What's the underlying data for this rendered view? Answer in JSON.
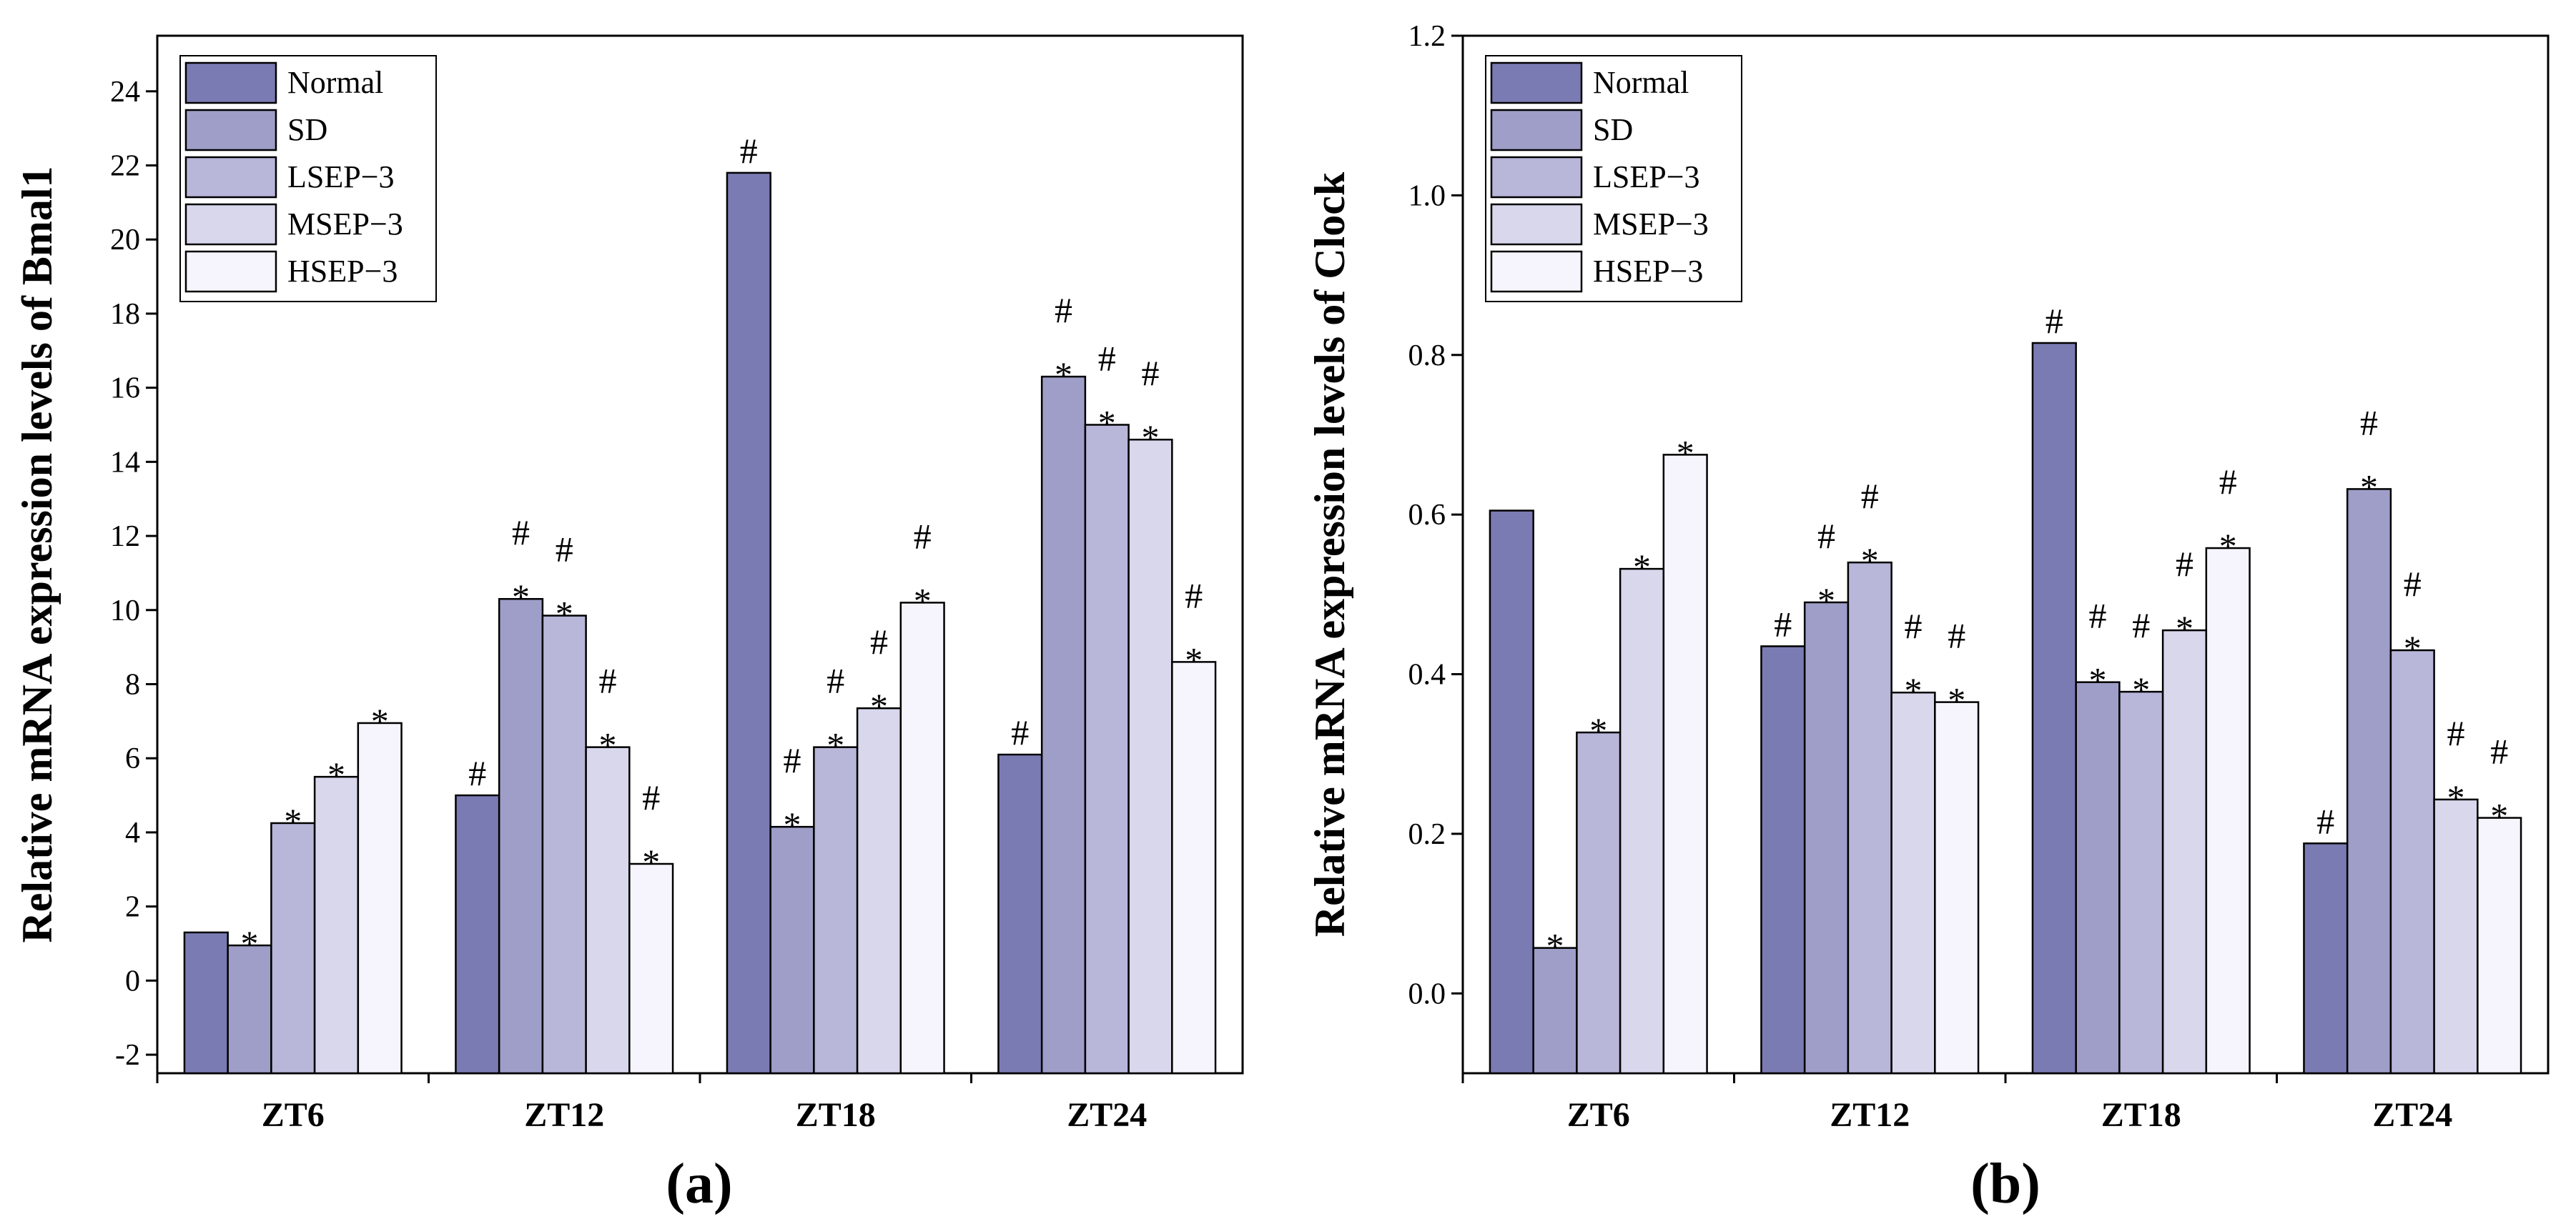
{
  "colors": [
    "#7b7bb3",
    "#9e9ec8",
    "#b8b6d9",
    "#d8d7ec",
    "#f6f5fd"
  ],
  "chart_data": [
    {
      "type": "bar",
      "panel_label": "(a)",
      "ylabel": "Relative mRNA expression levels of Bmal1",
      "xlabel": "",
      "ylim": [
        -2.5,
        25.5
      ],
      "yticks": [
        -2,
        0,
        2,
        4,
        6,
        8,
        10,
        12,
        14,
        16,
        18,
        20,
        22,
        24
      ],
      "yticks_text": [
        "-2",
        "0",
        "2",
        "4",
        "6",
        "8",
        "10",
        "12",
        "14",
        "16",
        "18",
        "20",
        "22",
        "24"
      ],
      "legend_position": "top-left",
      "categories": [
        "ZT6",
        "ZT12",
        "ZT18",
        "ZT24"
      ],
      "series": [
        {
          "name": "Normal",
          "values": [
            1.3,
            5.0,
            21.8,
            6.1
          ],
          "annotations": [
            "",
            "#",
            "#",
            "#"
          ]
        },
        {
          "name": "SD",
          "values": [
            0.95,
            10.3,
            4.15,
            16.3
          ],
          "annotations": [
            "*",
            "#*",
            "#*",
            "#*"
          ]
        },
        {
          "name": "LSEP−3",
          "values": [
            4.25,
            9.85,
            6.3,
            15.0
          ],
          "annotations": [
            "*",
            "#*",
            "#*",
            "#*"
          ]
        },
        {
          "name": "MSEP−3",
          "values": [
            5.5,
            6.3,
            7.35,
            14.6
          ],
          "annotations": [
            "*",
            "#*",
            "#*",
            "#*"
          ]
        },
        {
          "name": "HSEP−3",
          "values": [
            6.95,
            3.15,
            10.2,
            8.6
          ],
          "annotations": [
            "*",
            "#*",
            "#*",
            "#*"
          ]
        }
      ]
    },
    {
      "type": "bar",
      "panel_label": "(b)",
      "ylabel": "Relative mRNA expression levels of Clock",
      "xlabel": "",
      "ylim": [
        -0.1,
        1.2
      ],
      "yticks": [
        0.0,
        0.2,
        0.4,
        0.6,
        0.8,
        1.0,
        1.2
      ],
      "yticks_text": [
        "0.0",
        "0.2",
        "0.4",
        "0.6",
        "0.8",
        "1.0",
        "1.2"
      ],
      "legend_position": "top-left",
      "categories": [
        "ZT6",
        "ZT12",
        "ZT18",
        "ZT24"
      ],
      "series": [
        {
          "name": "Normal",
          "values": [
            0.605,
            0.435,
            0.815,
            0.188
          ],
          "annotations": [
            "",
            "#",
            "#",
            "#"
          ]
        },
        {
          "name": "SD",
          "values": [
            0.057,
            0.49,
            0.39,
            0.632
          ],
          "annotations": [
            "*",
            "#*",
            "#*",
            "#*"
          ]
        },
        {
          "name": "LSEP−3",
          "values": [
            0.327,
            0.54,
            0.378,
            0.43
          ],
          "annotations": [
            "*",
            "#*",
            "#*",
            "#*"
          ]
        },
        {
          "name": "MSEP−3",
          "values": [
            0.532,
            0.377,
            0.455,
            0.243
          ],
          "annotations": [
            "*",
            "#*",
            "#*",
            "#*"
          ]
        },
        {
          "name": "HSEP−3",
          "values": [
            0.675,
            0.365,
            0.558,
            0.22
          ],
          "annotations": [
            "*",
            "#*",
            "#*",
            "#*"
          ]
        }
      ]
    }
  ]
}
